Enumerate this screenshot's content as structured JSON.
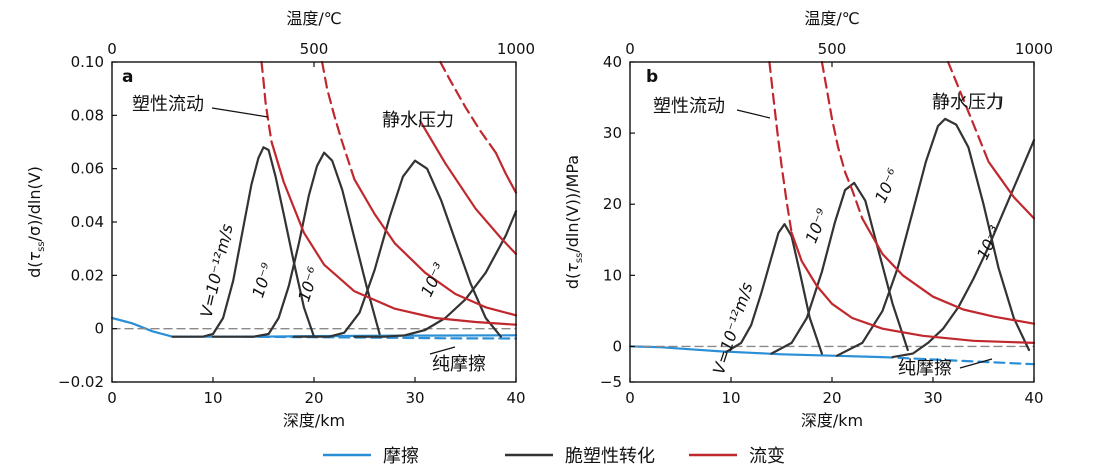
{
  "chart_data": [
    {
      "type": "line",
      "panel_label": "a",
      "xlabel": "深度/km",
      "top_xlabel": "温度/℃",
      "ylabel": "d(τss/σ)/dln(V)",
      "xlim": [
        0,
        40
      ],
      "ylim": [
        -0.02,
        0.1
      ],
      "x_ticks": [
        "0",
        "10",
        "20",
        "30",
        "40"
      ],
      "y_ticks": [
        "-0.02",
        "0",
        "0.02",
        "0.04",
        "0.06",
        "0.08",
        "0.10"
      ],
      "top_ticks": [
        {
          "depth": 0,
          "label": "0"
        },
        {
          "depth": 20,
          "label": "500"
        },
        {
          "depth": 40,
          "label": "1000"
        }
      ],
      "annotations": [
        "塑性流动",
        "静水压力",
        "纯摩擦"
      ],
      "curve_labels": [
        "V=10⁻¹²m/s",
        "10⁻⁹",
        "10⁻⁶",
        "10⁻³"
      ],
      "series": [
        {
          "group": "friction",
          "color": "#2a8fd6",
          "style": "solid",
          "x": [
            0,
            2,
            4,
            6,
            10,
            14,
            20,
            30,
            40
          ],
          "y": [
            0.004,
            0.002,
            -0.001,
            -0.003,
            -0.003,
            -0.003,
            -0.0028,
            -0.0026,
            -0.0025
          ]
        },
        {
          "group": "friction",
          "color": "#2a8fd6",
          "style": "dashed",
          "x": [
            13,
            20,
            27,
            33,
            40
          ],
          "y": [
            -0.003,
            -0.0032,
            -0.0034,
            -0.0036,
            -0.0037
          ]
        },
        {
          "group": "baseline",
          "color": "#8a8a8a",
          "style": "dashed",
          "x": [
            0,
            40
          ],
          "y": [
            0,
            0
          ]
        },
        {
          "group": "transition",
          "color": "#333333",
          "style": "solid",
          "x": [
            6,
            9,
            10,
            11,
            12,
            13,
            13.8,
            14.5,
            15,
            15.5,
            16.2,
            17,
            18,
            19,
            20
          ],
          "y": [
            -0.003,
            -0.003,
            -0.002,
            0.004,
            0.018,
            0.038,
            0.054,
            0.064,
            0.068,
            0.067,
            0.057,
            0.043,
            0.025,
            0.008,
            -0.003
          ]
        },
        {
          "group": "transition",
          "color": "#333333",
          "style": "solid",
          "x": [
            10,
            14,
            15.5,
            16.5,
            17.5,
            18.5,
            19.5,
            20.3,
            21,
            21.8,
            22.8,
            24,
            25.2,
            26.5
          ],
          "y": [
            -0.003,
            -0.003,
            -0.002,
            0.004,
            0.016,
            0.032,
            0.05,
            0.061,
            0.066,
            0.063,
            0.052,
            0.034,
            0.016,
            -0.002
          ]
        },
        {
          "group": "transition",
          "color": "#333333",
          "style": "solid",
          "x": [
            18,
            21.5,
            23,
            24.5,
            26,
            27.5,
            28.8,
            30,
            31.2,
            32.6,
            34,
            35.5,
            37,
            38.5
          ],
          "y": [
            -0.003,
            -0.003,
            -0.0015,
            0.006,
            0.022,
            0.042,
            0.057,
            0.063,
            0.06,
            0.048,
            0.033,
            0.017,
            0.004,
            -0.003
          ]
        },
        {
          "group": "transition",
          "color": "#333333",
          "style": "solid",
          "x": [
            24,
            27,
            29,
            31,
            33,
            35,
            37,
            39,
            40
          ],
          "y": [
            -0.003,
            -0.003,
            -0.0025,
            -0.0005,
            0.004,
            0.011,
            0.021,
            0.035,
            0.044
          ]
        },
        {
          "group": "rheology",
          "color": "#c0282e",
          "style": "dashed",
          "x": [
            14.8,
            15.0,
            15.2,
            15.5,
            15.8
          ],
          "y": [
            0.1,
            0.093,
            0.085,
            0.077,
            0.07
          ]
        },
        {
          "group": "rheology",
          "color": "#c0282e",
          "style": "dashed",
          "x": [
            20.8,
            21.3,
            22.0,
            22.7,
            23.4,
            24.0
          ],
          "y": [
            0.1,
            0.09,
            0.08,
            0.071,
            0.063,
            0.056
          ]
        },
        {
          "group": "rheology",
          "color": "#c0282e",
          "style": "dashed",
          "x": [
            32.5,
            33.5,
            35,
            36.5,
            38.0
          ],
          "y": [
            0.1,
            0.093,
            0.083,
            0.074,
            0.066
          ]
        },
        {
          "group": "rheology",
          "color": "#c0282e",
          "style": "solid",
          "x": [
            15.8,
            17,
            19,
            21,
            24,
            28,
            32,
            36,
            40
          ],
          "y": [
            0.07,
            0.055,
            0.036,
            0.024,
            0.014,
            0.0075,
            0.004,
            0.0025,
            0.0015
          ]
        },
        {
          "group": "rheology",
          "color": "#c0282e",
          "style": "solid",
          "x": [
            24.0,
            26,
            28,
            31,
            34,
            37,
            40
          ],
          "y": [
            0.056,
            0.043,
            0.032,
            0.021,
            0.013,
            0.008,
            0.005
          ]
        },
        {
          "group": "rheology",
          "color": "#c0282e",
          "style": "solid",
          "x": [
            38.0,
            39,
            40
          ],
          "y": [
            0.066,
            0.058,
            0.051
          ]
        },
        {
          "group": "rheology",
          "color": "#c0282e",
          "style": "solid",
          "x": [
            30.5,
            33,
            36,
            38.5,
            40
          ],
          "y": [
            0.078,
            0.062,
            0.045,
            0.034,
            0.028
          ]
        }
      ]
    },
    {
      "type": "line",
      "panel_label": "b",
      "xlabel": "深度/km",
      "top_xlabel": "温度/℃",
      "ylabel": "d(τss/dln(V))/MPa",
      "xlim": [
        0,
        40
      ],
      "ylim": [
        -5,
        40
      ],
      "x_ticks": [
        "0",
        "10",
        "20",
        "30",
        "40"
      ],
      "y_ticks": [
        "-5",
        "0",
        "10",
        "20",
        "30",
        "40"
      ],
      "top_ticks": [
        {
          "depth": 0,
          "label": "0"
        },
        {
          "depth": 20,
          "label": "500"
        },
        {
          "depth": 40,
          "label": "1000"
        }
      ],
      "annotations": [
        "塑性流动",
        "静水压力",
        "纯摩擦"
      ],
      "curve_labels": [
        "V=10⁻¹²m/s",
        "10⁻⁹",
        "10⁻⁶",
        "10⁻³"
      ],
      "series": [
        {
          "group": "friction",
          "color": "#2a8fd6",
          "style": "solid",
          "x": [
            0,
            3,
            6,
            9,
            12,
            15,
            20,
            25
          ],
          "y": [
            0,
            -0.1,
            -0.4,
            -0.7,
            -0.9,
            -1.1,
            -1.3,
            -1.5
          ]
        },
        {
          "group": "friction",
          "color": "#2a8fd6",
          "style": "dashed",
          "x": [
            25,
            28,
            31,
            34,
            37,
            40
          ],
          "y": [
            -1.5,
            -1.7,
            -1.9,
            -2.1,
            -2.3,
            -2.5
          ]
        },
        {
          "group": "baseline",
          "color": "#8a8a8a",
          "style": "dashed",
          "x": [
            0,
            40
          ],
          "y": [
            0,
            0
          ]
        },
        {
          "group": "transition",
          "color": "#333333",
          "style": "solid",
          "x": [
            9.5,
            11,
            12,
            13,
            14,
            14.7,
            15.3,
            16,
            16.8,
            17.8,
            19
          ],
          "y": [
            -0.8,
            0.5,
            3,
            7.5,
            12.5,
            16,
            17.2,
            15.5,
            10.5,
            4,
            -1
          ]
        },
        {
          "group": "transition",
          "color": "#333333",
          "style": "solid",
          "x": [
            14,
            16,
            17.5,
            19,
            20.3,
            21.3,
            22.2,
            23.3,
            24.5,
            26,
            27.5
          ],
          "y": [
            -1,
            0.5,
            4,
            10.5,
            17.5,
            22,
            23,
            20.5,
            14,
            6,
            -0.5
          ]
        },
        {
          "group": "transition",
          "color": "#333333",
          "style": "solid",
          "x": [
            20.5,
            23,
            25,
            26.5,
            28,
            29.3,
            30.5,
            31.2,
            32.3,
            33.5,
            35,
            36.5,
            38,
            39.5
          ],
          "y": [
            -1.3,
            0.5,
            5,
            11,
            19,
            26,
            31,
            32,
            31.2,
            28,
            20,
            11,
            4,
            -0.5
          ]
        },
        {
          "group": "transition",
          "color": "#333333",
          "style": "solid",
          "x": [
            26,
            28,
            29.5,
            31,
            32.5,
            34,
            35.5,
            37,
            38.5,
            40
          ],
          "y": [
            -1.5,
            -1,
            0.5,
            2.5,
            5.5,
            9.5,
            14,
            19,
            24,
            29
          ]
        },
        {
          "group": "rheology",
          "color": "#c0282e",
          "style": "dashed",
          "x": [
            13.8,
            14.2,
            14.6,
            15.0,
            15.5,
            16.0
          ],
          "y": [
            40,
            35,
            30,
            25.5,
            20.5,
            16
          ]
        },
        {
          "group": "rheology",
          "color": "#c0282e",
          "style": "dashed",
          "x": [
            19.0,
            19.5,
            20.0,
            20.6,
            21.3,
            22.0,
            23.0
          ],
          "y": [
            40,
            36,
            32,
            28,
            24.5,
            22,
            18
          ]
        },
        {
          "group": "rheology",
          "color": "#c0282e",
          "style": "dashed",
          "x": [
            31.5,
            32.5,
            33.5,
            34.5,
            35.5
          ],
          "y": [
            40,
            36.5,
            33,
            29.5,
            26
          ]
        },
        {
          "group": "rheology",
          "color": "#c0282e",
          "style": "solid",
          "x": [
            16.0,
            17,
            18.5,
            20,
            22,
            25,
            29,
            34,
            40
          ],
          "y": [
            16,
            12,
            8.5,
            6,
            4,
            2.5,
            1.5,
            0.8,
            0.5
          ]
        },
        {
          "group": "rheology",
          "color": "#c0282e",
          "style": "solid",
          "x": [
            23.0,
            25,
            27,
            30,
            33,
            36,
            40
          ],
          "y": [
            18,
            13,
            10,
            7,
            5.2,
            4.2,
            3.2
          ]
        },
        {
          "group": "rheology",
          "color": "#c0282e",
          "style": "solid",
          "x": [
            35.5,
            36.5,
            38,
            40
          ],
          "y": [
            26,
            24,
            21,
            18
          ]
        }
      ]
    }
  ],
  "legend": [
    {
      "label": "摩擦",
      "color": "#2a8fd6"
    },
    {
      "label": "脆塑性转化",
      "color": "#333333"
    },
    {
      "label": "流变",
      "color": "#c0282e"
    }
  ]
}
